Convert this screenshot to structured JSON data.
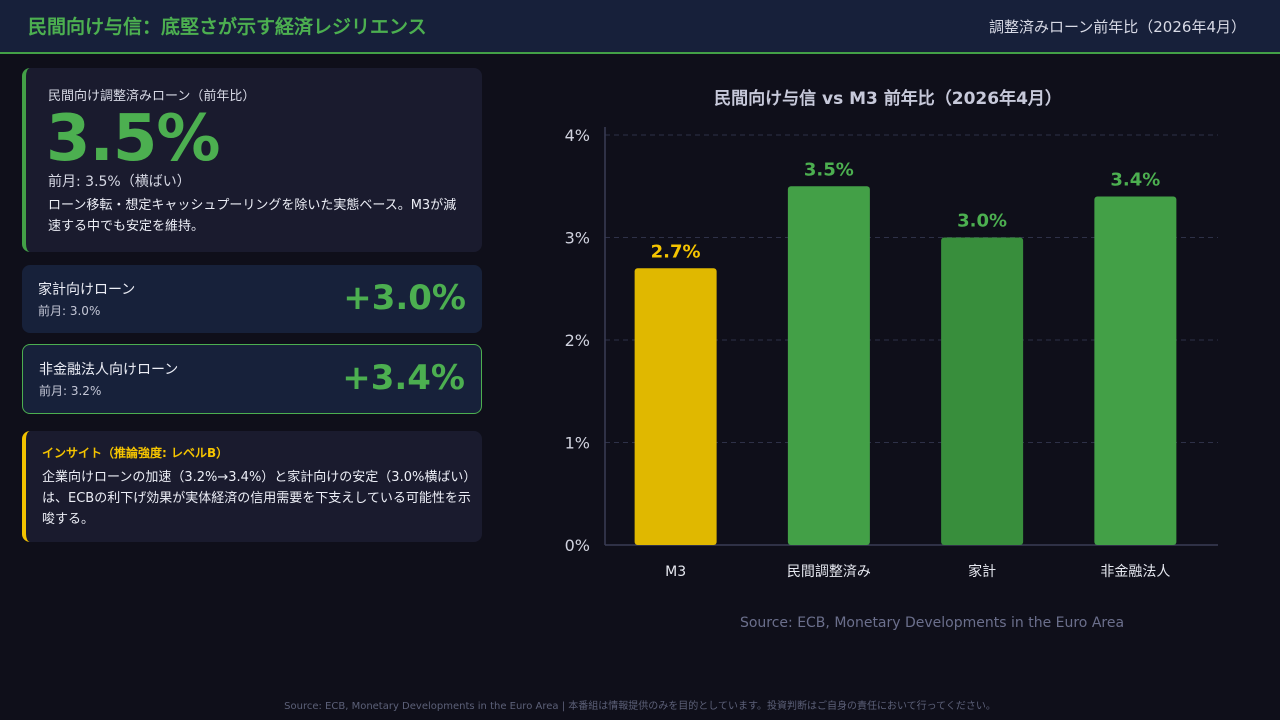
{
  "header": {
    "title": "民間向け与信：底堅さが示す経済レジリエンス",
    "subtitle": "調整済みローン前年比（2026年4月）"
  },
  "main_card": {
    "label": "民間向け調整済みローン（前年比）",
    "value": "3.5%",
    "previous": "前月: 3.5%（横ばい）",
    "description": "ローン移転・想定キャッシュプーリングを除いた実態ベース。M3が減速する中でも安定を維持。"
  },
  "household_card": {
    "label": "家計向けローン",
    "previous": "前月: 3.0%",
    "value": "+3.0%"
  },
  "nfc_card": {
    "label": "非金融法人向けローン",
    "previous": "前月: 3.2%",
    "value": "+3.4%"
  },
  "insight": {
    "title": "インサイト（推論強度: レベルB）",
    "body": "企業向けローンの加速（3.2%→3.4%）と家計向けの安定（3.0%横ばい）は、ECBの利下げ効果が実体経済の信用需要を下支えしている可能性を示唆する。"
  },
  "chart_data": {
    "type": "bar",
    "title": "民間向け与信 vs M3 前年比（2026年4月）",
    "categories": [
      "M3",
      "民間調整済み",
      "家計",
      "非金融法人"
    ],
    "values": [
      2.7,
      3.5,
      3.0,
      3.4
    ],
    "value_labels": [
      "2.7%",
      "3.5%",
      "3.0%",
      "3.4%"
    ],
    "colors": [
      "#e0b800",
      "#43a047",
      "#388e3c",
      "#43a047"
    ],
    "label_colors": [
      "#f5c400",
      "#4caf50",
      "#4caf50",
      "#4caf50"
    ],
    "ylim": [
      0,
      4
    ],
    "yticks": [
      0,
      1,
      2,
      3,
      4
    ],
    "ytick_labels": [
      "0%",
      "1%",
      "2%",
      "3%",
      "4%"
    ],
    "grid": true,
    "source": "Source: ECB, Monetary Developments in the Euro Area"
  },
  "footer": {
    "text": "Source: ECB, Monetary Developments in the Euro Area | 本番組は情報提供のみを目的としています。投資判断はご自身の責任において行ってください。"
  }
}
